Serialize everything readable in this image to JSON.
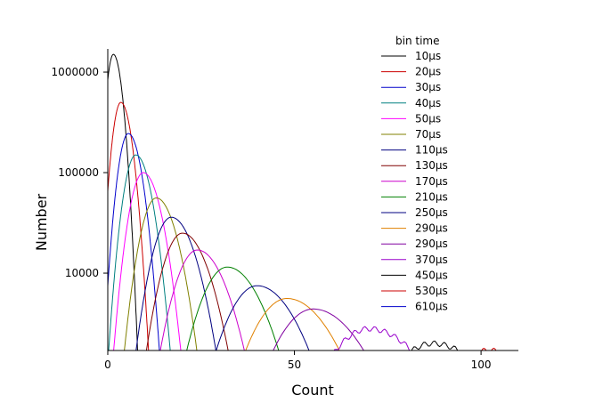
{
  "chart_data": {
    "type": "line",
    "title": "",
    "xlabel": "Count",
    "ylabel": "Number",
    "xlim": [
      0,
      110
    ],
    "ylim": [
      1700,
      1700000
    ],
    "y_scale": "log",
    "grid": false,
    "legend_position": "top-right",
    "legend_title": "bin time",
    "x_ticks": [
      0,
      50,
      100
    ],
    "x_tick_labels": [
      "0",
      "50",
      "100"
    ],
    "y_ticks": [
      10000,
      100000,
      1000000
    ],
    "y_tick_labels": [
      "10000",
      "100000",
      "1000000"
    ],
    "series": [
      {
        "name": "10µs",
        "color": "#000000",
        "mode": 1.5,
        "peak": 1500000,
        "width": 2.4,
        "x_end": 8
      },
      {
        "name": "20µs",
        "color": "#cc0000",
        "mode": 3.5,
        "peak": 500000,
        "width": 3.0,
        "x_end": 13
      },
      {
        "name": "30µs",
        "color": "#0000cc",
        "mode": 5.5,
        "peak": 245000,
        "width": 3.6,
        "x_end": 17
      },
      {
        "name": "40µs",
        "color": "#008080",
        "mode": 7.5,
        "peak": 150000,
        "width": 4.2,
        "x_end": 21
      },
      {
        "name": "50µs",
        "color": "#ff00ff",
        "mode": 9.5,
        "peak": 100000,
        "width": 4.8,
        "x_end": 25
      },
      {
        "name": "70µs",
        "color": "#808000",
        "mode": 13,
        "peak": 56000,
        "width": 5.6,
        "x_end": 32
      },
      {
        "name": "110µs",
        "color": "#000080",
        "mode": 17,
        "peak": 36000,
        "width": 6.6,
        "x_end": 40
      },
      {
        "name": "130µs",
        "color": "#800000",
        "mode": 20,
        "peak": 25000,
        "width": 7.2,
        "x_end": 46
      },
      {
        "name": "170µs",
        "color": "#cc00cc",
        "mode": 24,
        "peak": 17000,
        "width": 8.0,
        "x_end": 52
      },
      {
        "name": "210µs",
        "color": "#008000",
        "mode": 32,
        "peak": 11500,
        "width": 9.6,
        "x_end": 62
      },
      {
        "name": "250µs",
        "color": "#000080",
        "mode": 40,
        "peak": 7500,
        "width": 11.0,
        "x_end": 73
      },
      {
        "name": "290µs",
        "color": "#e08000",
        "mode": 48,
        "peak": 5600,
        "width": 12.4,
        "x_end": 82
      },
      {
        "name": "290µs",
        "color": "#8000a0",
        "mode": 55,
        "peak": 4400,
        "width": 13.4,
        "x_end": 88
      },
      {
        "name": "370µs",
        "color": "#9900cc",
        "mode": 70,
        "peak": 2800,
        "width": 15.5,
        "x_end": 100
      },
      {
        "name": "450µs",
        "color": "#000000",
        "mode": 87,
        "peak": 2000,
        "width": 16.5,
        "x_end": 106
      },
      {
        "name": "530µs",
        "color": "#cc0000",
        "mode": 102,
        "peak": 1700,
        "width": 17.0,
        "x_end": 108
      },
      {
        "name": "610µs",
        "color": "#0000cc",
        "mode": 115,
        "peak": 1500,
        "width": 18.0,
        "x_end": 110
      }
    ]
  }
}
